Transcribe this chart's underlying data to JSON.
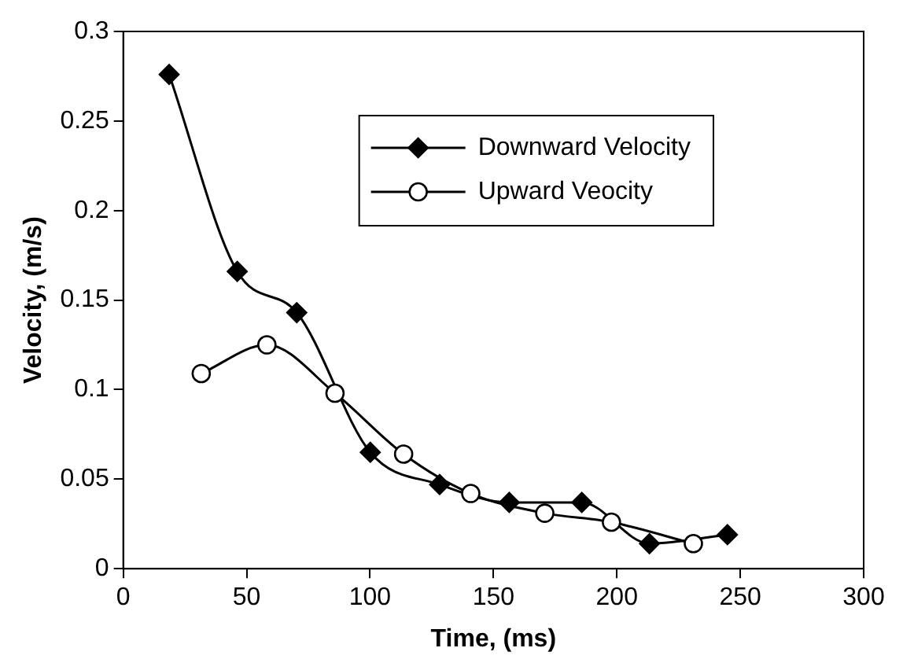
{
  "chart_data": {
    "type": "line",
    "xlabel": "Time, (ms)",
    "ylabel": "Velocity, (m/s)",
    "xlim": [
      0,
      300
    ],
    "xticks": [
      0,
      50,
      100,
      150,
      200,
      250,
      300
    ],
    "ylim": [
      0,
      0.3
    ],
    "yticks": [
      0,
      0.05,
      0.1,
      0.15,
      0.2,
      0.25,
      0.3
    ],
    "grid": false,
    "legend": "top right",
    "series": [
      {
        "name": "Downward Velocity",
        "color": "#000000",
        "marker": "diamond",
        "x": [
          18.6,
          46.2,
          70.3,
          85.8,
          100.1,
          128.2,
          156.4,
          185.8,
          213.2,
          244.8
        ],
        "values": [
          0.276,
          0.166,
          0.143,
          null,
          0.065,
          0.047,
          0.037,
          0.037,
          0.014,
          0.019
        ]
      },
      {
        "name": "Upward Veocity",
        "color": "#000000",
        "marker": "circle",
        "x": [
          31.6,
          58.2,
          85.8,
          113.6,
          140.8,
          170.8,
          197.8,
          231
        ],
        "values": [
          0.109,
          0.125,
          0.098,
          0.064,
          0.042,
          0.031,
          0.026,
          0.014
        ]
      }
    ]
  }
}
